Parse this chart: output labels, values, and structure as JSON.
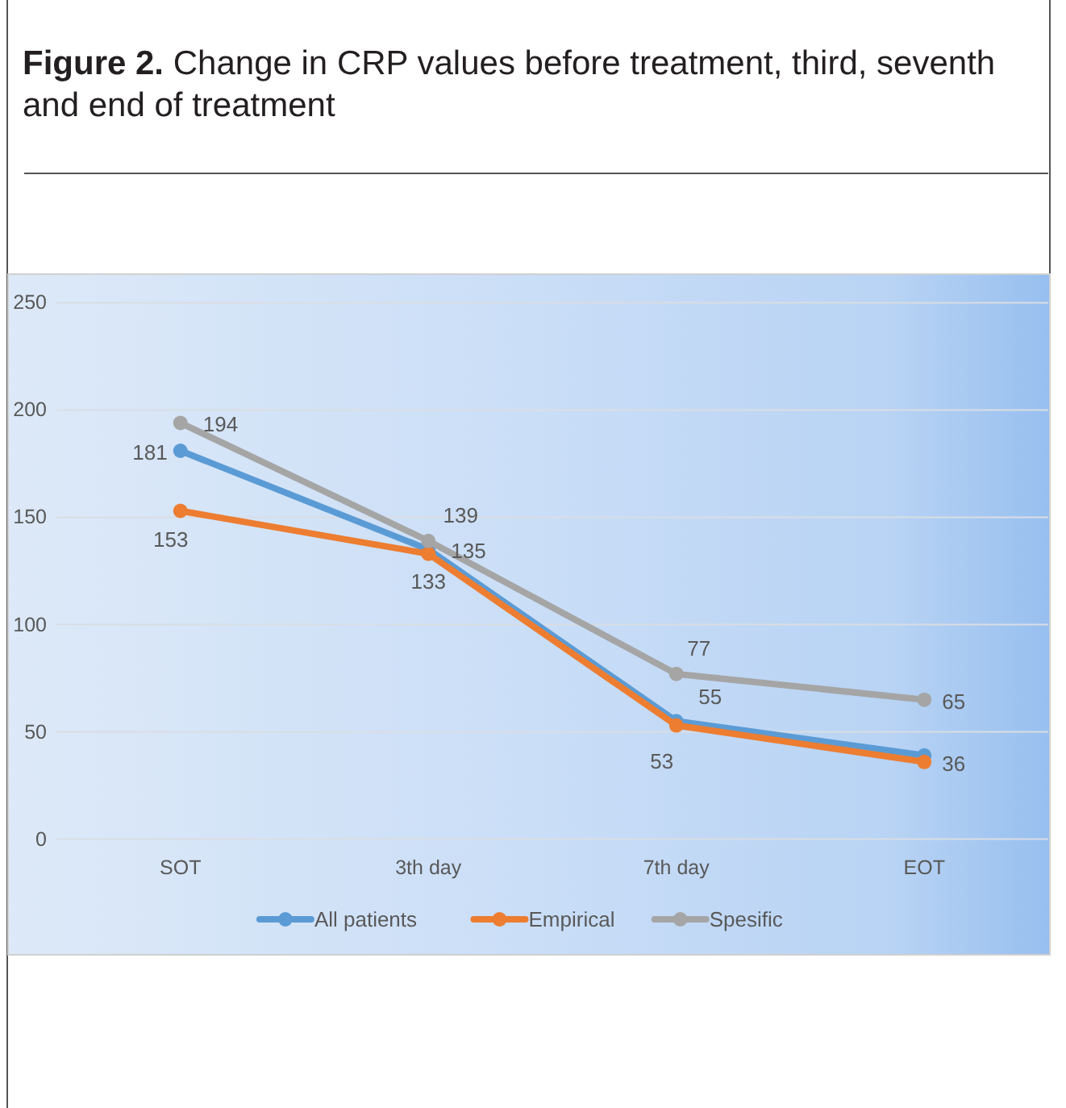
{
  "chart_data": {
    "type": "line",
    "title": "Figure 2. Change in CRP values before treatment, third, seventh and end of treatment",
    "categories": [
      "SOT",
      "3th day",
      "7th day",
      "EOT"
    ],
    "series": [
      {
        "name": "All patients",
        "color": "#5b9bd5",
        "values": [
          181,
          135,
          55,
          39
        ],
        "value_labels": [
          "181",
          "135",
          "55",
          null
        ]
      },
      {
        "name": "Empirical",
        "color": "#ed7d31",
        "values": [
          153,
          133,
          53,
          36
        ],
        "value_labels": [
          "153",
          "133",
          "53",
          "36"
        ]
      },
      {
        "name": "Spesific",
        "color": "#a5a5a5",
        "values": [
          194,
          139,
          77,
          65
        ],
        "value_labels": [
          "194",
          "139",
          "77",
          "65"
        ]
      }
    ],
    "ylim": [
      0,
      250
    ],
    "yticks": [
      0,
      50,
      100,
      150,
      200,
      250
    ],
    "grid": "y",
    "legend": "bottom",
    "marker": "circle",
    "line_style": "solid"
  }
}
